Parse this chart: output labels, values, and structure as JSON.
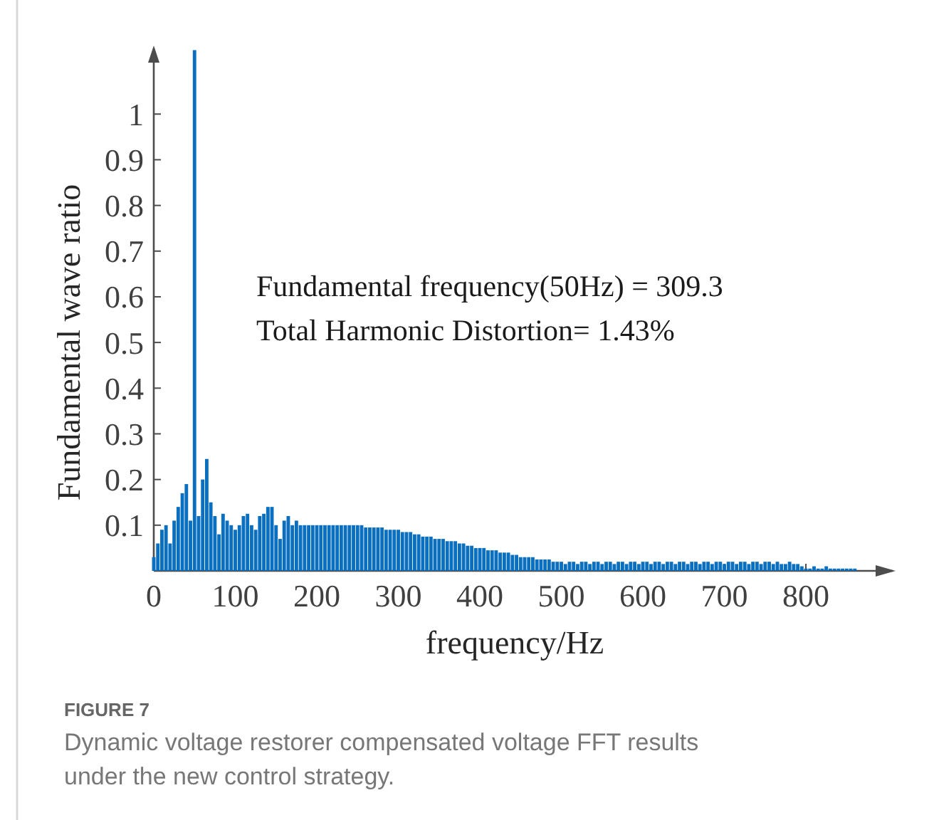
{
  "chart_data": {
    "type": "bar",
    "xlabel": "frequency/Hz",
    "ylabel": "Fundamental wave ratio",
    "annotations": [
      "Fundamental frequency(50Hz) = 309.3",
      "Total Harmonic Distortion= 1.43%",
      "FIGURE 7",
      "Dynamic voltage restorer compensated voltage FFT results under the new control strategy."
    ],
    "x": [
      0,
      5,
      10,
      15,
      20,
      25,
      30,
      35,
      40,
      45,
      50,
      55,
      60,
      65,
      70,
      75,
      80,
      85,
      90,
      95,
      100,
      105,
      110,
      115,
      120,
      125,
      130,
      135,
      140,
      145,
      150,
      155,
      160,
      165,
      170,
      175,
      180,
      185,
      190,
      195,
      200,
      205,
      210,
      215,
      220,
      225,
      230,
      235,
      240,
      245,
      250,
      255,
      260,
      265,
      270,
      275,
      280,
      285,
      290,
      295,
      300,
      305,
      310,
      315,
      320,
      325,
      330,
      335,
      340,
      345,
      350,
      355,
      360,
      365,
      370,
      375,
      380,
      385,
      390,
      395,
      400,
      405,
      410,
      415,
      420,
      425,
      430,
      435,
      440,
      445,
      450,
      455,
      460,
      465,
      470,
      475,
      480,
      485,
      490,
      495,
      500,
      505,
      510,
      515,
      520,
      525,
      530,
      535,
      540,
      545,
      550,
      555,
      560,
      565,
      570,
      575,
      580,
      585,
      590,
      595,
      600,
      605,
      610,
      615,
      620,
      625,
      630,
      635,
      640,
      645,
      650,
      655,
      660,
      665,
      670,
      675,
      680,
      685,
      690,
      695,
      700,
      705,
      710,
      715,
      720,
      725,
      730,
      735,
      740,
      745,
      750,
      755,
      760,
      765,
      770,
      775,
      780,
      785,
      790,
      795,
      800,
      805,
      810,
      815,
      820,
      825,
      830,
      835,
      840,
      845,
      850,
      855,
      860
    ],
    "values": [
      0.03,
      0.06,
      0.09,
      0.1,
      0.06,
      0.11,
      0.14,
      0.17,
      0.19,
      0.11,
      1.14,
      0.12,
      0.2,
      0.245,
      0.15,
      0.12,
      0.08,
      0.125,
      0.11,
      0.1,
      0.09,
      0.1,
      0.12,
      0.125,
      0.1,
      0.09,
      0.12,
      0.125,
      0.14,
      0.14,
      0.1,
      0.07,
      0.11,
      0.12,
      0.1,
      0.11,
      0.1,
      0.1,
      0.1,
      0.1,
      0.1,
      0.1,
      0.1,
      0.1,
      0.1,
      0.1,
      0.1,
      0.1,
      0.1,
      0.1,
      0.1,
      0.1,
      0.095,
      0.095,
      0.095,
      0.095,
      0.095,
      0.09,
      0.09,
      0.09,
      0.09,
      0.085,
      0.085,
      0.085,
      0.08,
      0.08,
      0.075,
      0.075,
      0.075,
      0.07,
      0.07,
      0.07,
      0.065,
      0.065,
      0.065,
      0.06,
      0.06,
      0.055,
      0.055,
      0.05,
      0.05,
      0.05,
      0.045,
      0.045,
      0.045,
      0.04,
      0.04,
      0.04,
      0.035,
      0.035,
      0.03,
      0.03,
      0.03,
      0.03,
      0.025,
      0.025,
      0.025,
      0.025,
      0.02,
      0.02,
      0.02,
      0.015,
      0.02,
      0.02,
      0.015,
      0.02,
      0.02,
      0.015,
      0.02,
      0.02,
      0.015,
      0.02,
      0.02,
      0.015,
      0.02,
      0.02,
      0.015,
      0.02,
      0.02,
      0.015,
      0.02,
      0.02,
      0.015,
      0.02,
      0.02,
      0.015,
      0.02,
      0.02,
      0.015,
      0.02,
      0.02,
      0.015,
      0.02,
      0.02,
      0.015,
      0.02,
      0.02,
      0.015,
      0.02,
      0.02,
      0.015,
      0.02,
      0.02,
      0.015,
      0.02,
      0.02,
      0.015,
      0.02,
      0.02,
      0.015,
      0.02,
      0.02,
      0.015,
      0.02,
      0.015,
      0.015,
      0.02,
      0.015,
      0.015,
      0.01,
      0.005,
      0.005,
      0.01,
      0.005,
      0.005,
      0.01,
      0.005,
      0.005,
      0.005,
      0.005,
      0.005,
      0.005,
      0.005
    ],
    "color": "#0b6fbf",
    "xlim": [
      0,
      910
    ],
    "xticks": [
      0,
      100,
      200,
      300,
      400,
      500,
      600,
      700,
      800
    ],
    "ylim": [
      0,
      1.15
    ],
    "yticks": [
      0.1,
      0.2,
      0.3,
      0.4,
      0.5,
      0.6,
      0.7,
      0.8,
      0.9,
      1
    ],
    "grid": false
  }
}
